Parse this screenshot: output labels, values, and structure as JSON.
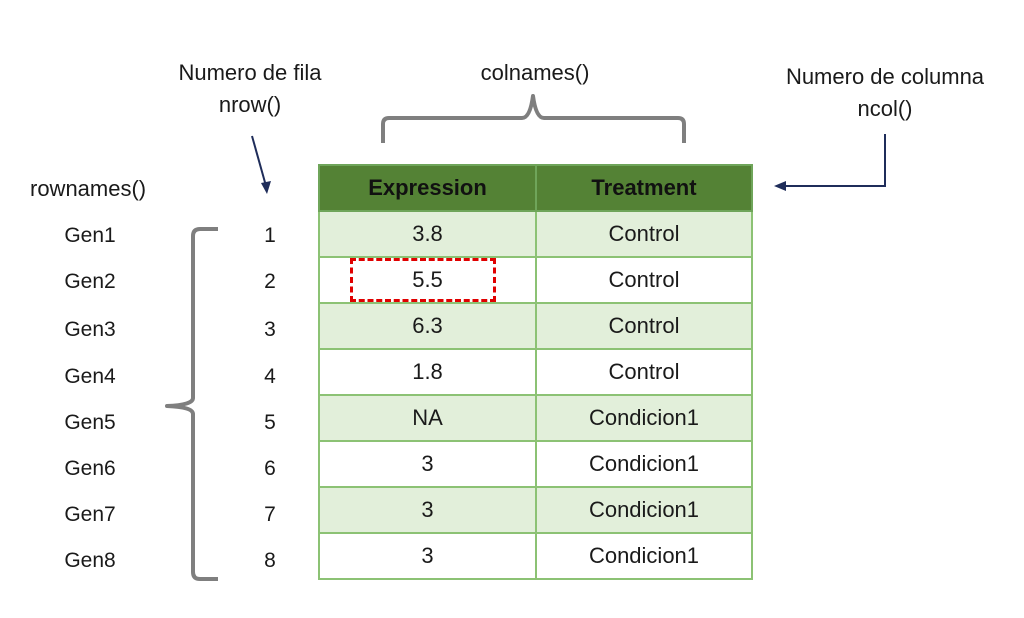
{
  "annotations": {
    "nrow_line1": "Numero de fila",
    "nrow_line2": "nrow()",
    "colnames": "colnames()",
    "ncol_line1": "Numero de columna",
    "ncol_line2": "ncol()",
    "rownames": "rownames()"
  },
  "table": {
    "headers": [
      "Expression",
      "Treatment"
    ],
    "rownames": [
      "Gen1",
      "Gen2",
      "Gen3",
      "Gen4",
      "Gen5",
      "Gen6",
      "Gen7",
      "Gen8"
    ],
    "rownumbers": [
      "1",
      "2",
      "3",
      "4",
      "5",
      "6",
      "7",
      "8"
    ],
    "rows": [
      [
        "3.8",
        "Control"
      ],
      [
        "5.5",
        "Control"
      ],
      [
        "6.3",
        "Control"
      ],
      [
        "1.8",
        "Control"
      ],
      [
        "NA",
        "Condicion1"
      ],
      [
        "3",
        "Condicion1"
      ],
      [
        "3",
        "Condicion1"
      ],
      [
        "3",
        "Condicion1"
      ]
    ],
    "highlighted_cell": {
      "row": 2,
      "column": "Expression",
      "value": "5.5"
    }
  },
  "colors": {
    "header_bg": "#548235",
    "row_band": "#e2efda",
    "border": "#8cc274",
    "highlight": "#e00000",
    "brace": "#7f7f7f",
    "arrow": "#1f2d5a"
  }
}
